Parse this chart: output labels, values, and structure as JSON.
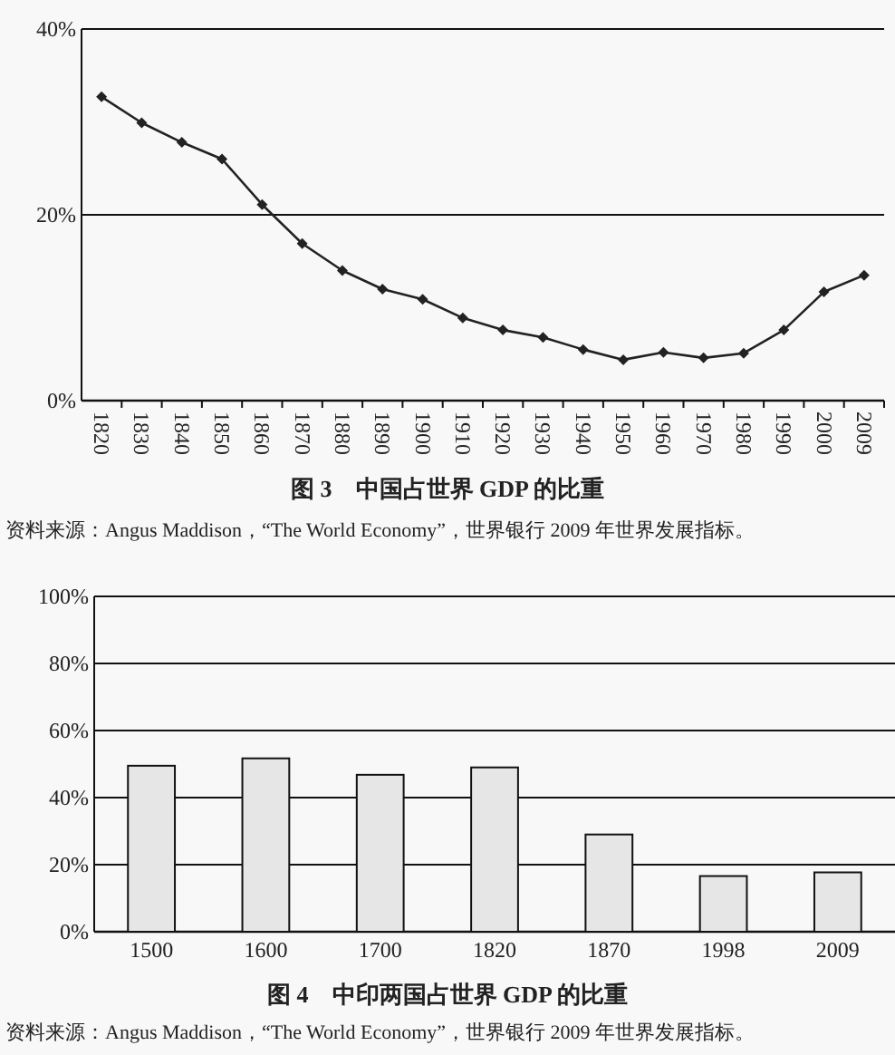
{
  "chart_data": [
    {
      "type": "line",
      "title": "图 3　中国占世界 GDP 的比重",
      "annotations": [
        "资料来源：Angus Maddison，“The World Economy”，世界银行 2009 年世界发展指标。"
      ],
      "categories": [
        "1820",
        "1830",
        "1840",
        "1850",
        "1860",
        "1870",
        "1880",
        "1890",
        "1900",
        "1910",
        "1920",
        "1930",
        "1940",
        "1950",
        "1960",
        "1970",
        "1980",
        "1990",
        "2000",
        "2009"
      ],
      "series": [
        {
          "color": "#222222",
          "values": [
            32.7,
            29.9,
            27.8,
            26.0,
            21.1,
            16.9,
            14.0,
            12.0,
            10.9,
            8.9,
            7.6,
            6.8,
            5.5,
            4.4,
            5.2,
            4.6,
            5.1,
            7.6,
            11.7,
            13.5
          ]
        }
      ],
      "ylim": [
        0,
        40
      ],
      "yticks": [
        {
          "value": 0,
          "label": "0%"
        },
        {
          "value": 20,
          "label": "20%"
        },
        {
          "value": 40,
          "label": "40%"
        }
      ],
      "grid": "y",
      "marker": "diamond",
      "line_style": "solid"
    },
    {
      "type": "bar",
      "title": "图 4　中印两国占世界 GDP 的比重",
      "annotations": [
        "资料来源：Angus Maddison，“The World Economy”，世界银行 2009 年世界发展指标。"
      ],
      "categories": [
        "1500",
        "1600",
        "1700",
        "1820",
        "1870",
        "1998",
        "2009"
      ],
      "series": [
        {
          "color": "#e6e6e6",
          "values": [
            49.5,
            51.7,
            46.8,
            49.0,
            29.0,
            16.6,
            17.7
          ]
        }
      ],
      "ylim": [
        0,
        100
      ],
      "yticks": [
        {
          "value": 0,
          "label": "0%"
        },
        {
          "value": 20,
          "label": "20%"
        },
        {
          "value": 40,
          "label": "40%"
        },
        {
          "value": 60,
          "label": "60%"
        },
        {
          "value": 80,
          "label": "80%"
        },
        {
          "value": 100,
          "label": "100%"
        }
      ],
      "grid": "y"
    }
  ]
}
